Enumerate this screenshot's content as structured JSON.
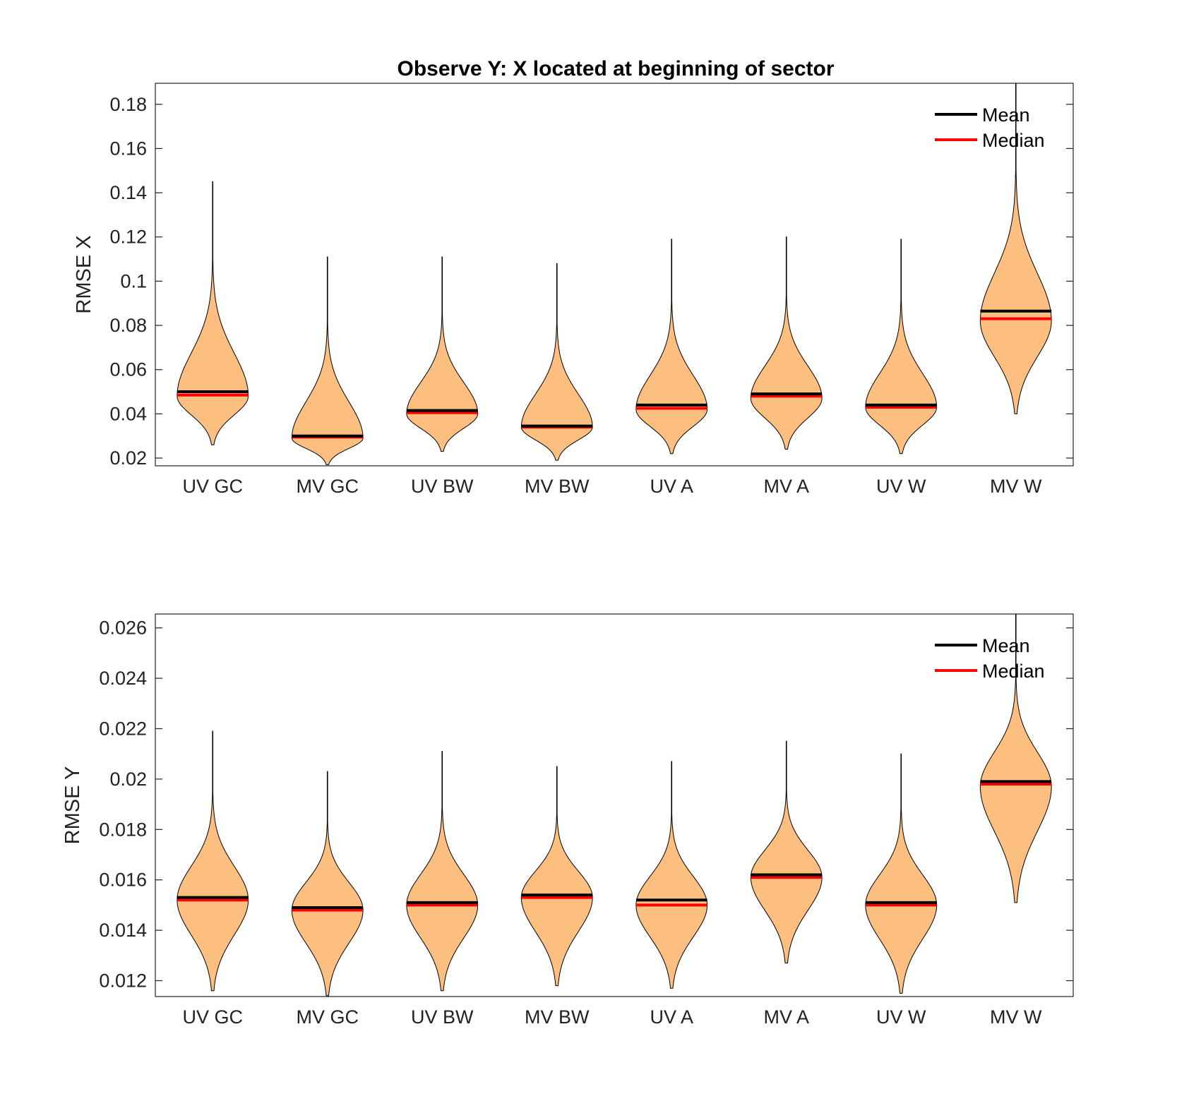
{
  "figure_title": "Observe Y: X located at beginning of sector",
  "chart_data": [
    {
      "type": "violin",
      "title": "Observe Y: X located at beginning of sector",
      "xlabel": "",
      "ylabel": "RMSE X",
      "ylim": [
        0.0165,
        0.1895
      ],
      "yticks": [
        "0.02",
        "0.04",
        "0.06",
        "0.08",
        "0.1",
        "0.12",
        "0.14",
        "0.16",
        "0.18"
      ],
      "ytick_values": [
        0.02,
        0.04,
        0.06,
        0.08,
        0.1,
        0.12,
        0.14,
        0.16,
        0.18
      ],
      "categories": [
        "UV GC",
        "MV GC",
        "UV BW",
        "MV BW",
        "UV A",
        "MV A",
        "UV W",
        "MV W"
      ],
      "legend": {
        "position": "top-right",
        "entries": [
          {
            "label": "Mean",
            "color": "#000000"
          },
          {
            "label": "Median",
            "color": "#ff0000"
          }
        ]
      },
      "violins": [
        {
          "min": 0.026,
          "max": 0.145,
          "mean": 0.05,
          "median": 0.0485,
          "peak": 0.048,
          "width": 0.62
        },
        {
          "min": 0.017,
          "max": 0.111,
          "mean": 0.03,
          "median": 0.0295,
          "peak": 0.029,
          "width": 0.62
        },
        {
          "min": 0.023,
          "max": 0.111,
          "mean": 0.0415,
          "median": 0.0405,
          "peak": 0.04,
          "width": 0.62
        },
        {
          "min": 0.019,
          "max": 0.108,
          "mean": 0.0345,
          "median": 0.034,
          "peak": 0.034,
          "width": 0.62
        },
        {
          "min": 0.022,
          "max": 0.119,
          "mean": 0.044,
          "median": 0.0425,
          "peak": 0.042,
          "width": 0.62
        },
        {
          "min": 0.024,
          "max": 0.12,
          "mean": 0.049,
          "median": 0.048,
          "peak": 0.047,
          "width": 0.62
        },
        {
          "min": 0.022,
          "max": 0.119,
          "mean": 0.044,
          "median": 0.043,
          "peak": 0.043,
          "width": 0.62
        },
        {
          "min": 0.04,
          "max": 0.1895,
          "mean": 0.0865,
          "median": 0.083,
          "peak": 0.082,
          "width": 0.62
        }
      ]
    },
    {
      "type": "violin",
      "title": "",
      "xlabel": "",
      "ylabel": "RMSE Y",
      "ylim": [
        0.01137,
        0.02655
      ],
      "yticks": [
        "0.012",
        "0.014",
        "0.016",
        "0.018",
        "0.02",
        "0.022",
        "0.024",
        "0.026"
      ],
      "ytick_values": [
        0.012,
        0.014,
        0.016,
        0.018,
        0.02,
        0.022,
        0.024,
        0.026
      ],
      "categories": [
        "UV GC",
        "MV GC",
        "UV BW",
        "MV BW",
        "UV A",
        "MV A",
        "UV W",
        "MV W"
      ],
      "legend": {
        "position": "top-right",
        "entries": [
          {
            "label": "Mean",
            "color": "#000000"
          },
          {
            "label": "Median",
            "color": "#ff0000"
          }
        ]
      },
      "violins": [
        {
          "min": 0.0116,
          "max": 0.0219,
          "mean": 0.0153,
          "median": 0.0152,
          "peak": 0.0152,
          "width": 0.62
        },
        {
          "min": 0.0114,
          "max": 0.0203,
          "mean": 0.0149,
          "median": 0.0148,
          "peak": 0.0148,
          "width": 0.62
        },
        {
          "min": 0.0116,
          "max": 0.0211,
          "mean": 0.0151,
          "median": 0.015,
          "peak": 0.015,
          "width": 0.62
        },
        {
          "min": 0.0118,
          "max": 0.0205,
          "mean": 0.0154,
          "median": 0.0153,
          "peak": 0.0153,
          "width": 0.62
        },
        {
          "min": 0.0117,
          "max": 0.0207,
          "mean": 0.0152,
          "median": 0.015,
          "peak": 0.015,
          "width": 0.62
        },
        {
          "min": 0.0127,
          "max": 0.0215,
          "mean": 0.0162,
          "median": 0.0161,
          "peak": 0.0161,
          "width": 0.62
        },
        {
          "min": 0.0115,
          "max": 0.021,
          "mean": 0.0151,
          "median": 0.015,
          "peak": 0.015,
          "width": 0.62
        },
        {
          "min": 0.0151,
          "max": 0.02655,
          "mean": 0.0199,
          "median": 0.0198,
          "peak": 0.0197,
          "width": 0.62
        }
      ]
    }
  ],
  "colors": {
    "violin_fill": "#fdbf80",
    "violin_edge": "#000000",
    "mean": "#000000",
    "median": "#ff0000"
  }
}
